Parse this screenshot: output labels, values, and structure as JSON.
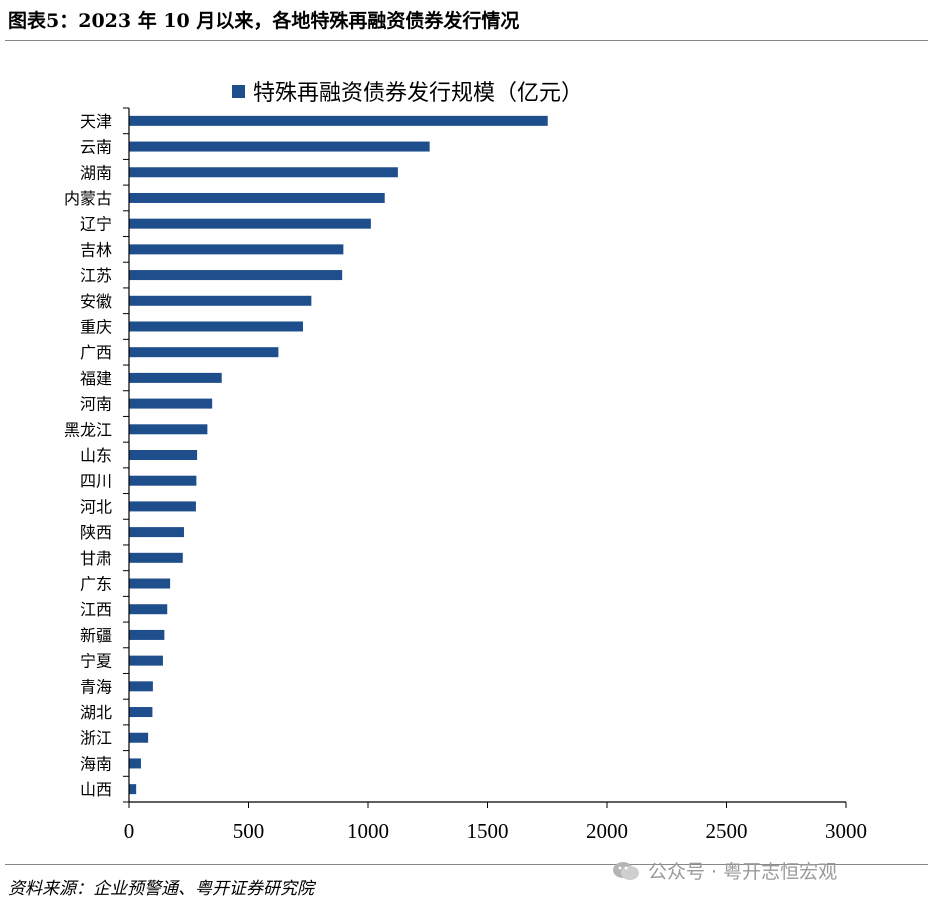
{
  "figure": {
    "title": "图表5：2023 年 10 月以来，各地特殊再融资债券发行情况",
    "source": "资料来源：企业预警通、粤开证券研究院",
    "watermark": "公众号 · 粤开志恒宏观"
  },
  "chart_data": {
    "type": "bar",
    "orientation": "horizontal",
    "categories": [
      "天津",
      "云南",
      "湖南",
      "内蒙古",
      "辽宁",
      "吉林",
      "江苏",
      "安徽",
      "重庆",
      "广西",
      "福建",
      "河南",
      "黑龙江",
      "山东",
      "四川",
      "河北",
      "陕西",
      "甘肃",
      "广东",
      "江西",
      "新疆",
      "宁夏",
      "青海",
      "湖北",
      "浙江",
      "海南",
      "山西"
    ],
    "series": [
      {
        "name": "特殊再融资债券发行规模（亿元）",
        "values": [
          1752,
          1258,
          1125,
          1070,
          1012,
          897,
          892,
          763,
          728,
          625,
          388,
          348,
          328,
          285,
          282,
          280,
          230,
          225,
          172,
          160,
          148,
          142,
          100,
          98,
          80,
          50,
          30
        ],
        "color": "#1f4e8c"
      }
    ],
    "xlim": [
      0,
      3000
    ],
    "xticks": [
      "0",
      "500",
      "1000",
      "1500",
      "2000",
      "2500",
      "3000"
    ],
    "legend_position": "top",
    "grid": false
  }
}
